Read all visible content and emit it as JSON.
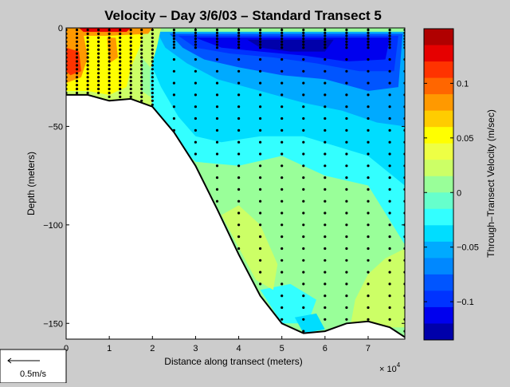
{
  "chart_data": {
    "type": "heatmap",
    "title": "Velocity – Day 3/6/03 – Standard Transect 5",
    "xlabel": "Distance along transect (meters)",
    "x_exponent_label": "× 10",
    "x_exponent_power": "4",
    "ylabel": "Depth (meters)",
    "xlim": [
      0,
      78500
    ],
    "ylim": [
      -158,
      0
    ],
    "x_ticks": [
      0,
      1,
      2,
      3,
      4,
      5,
      6,
      7
    ],
    "x_tick_labels": [
      "0",
      "1",
      "2",
      "3",
      "4",
      "5",
      "6",
      "7"
    ],
    "y_ticks": [
      0,
      -50,
      -100,
      -150
    ],
    "y_tick_labels": [
      "0",
      "−50",
      "−100",
      "−150"
    ],
    "grid": false,
    "colorbar": {
      "label": "Through–Transect Velocity (m/sec)",
      "range": [
        -0.135,
        0.15
      ],
      "ticks": [
        0.1,
        0.05,
        0,
        -0.05,
        -0.1
      ],
      "tick_labels": [
        "0.1",
        "0.05",
        "0",
        "−0.05",
        "−0.1"
      ],
      "levels": [
        {
          "v": 0.14,
          "color": "#b00000"
        },
        {
          "v": 0.125,
          "color": "#e60000"
        },
        {
          "v": 0.11,
          "color": "#ff3300"
        },
        {
          "v": 0.095,
          "color": "#ff6600"
        },
        {
          "v": 0.08,
          "color": "#ff9900"
        },
        {
          "v": 0.065,
          "color": "#ffcc00"
        },
        {
          "v": 0.05,
          "color": "#ffff00"
        },
        {
          "v": 0.035,
          "color": "#eeff44"
        },
        {
          "v": 0.02,
          "color": "#ccff66"
        },
        {
          "v": 0.005,
          "color": "#99ff99"
        },
        {
          "v": -0.01,
          "color": "#66ffcc"
        },
        {
          "v": -0.025,
          "color": "#33ffff"
        },
        {
          "v": -0.04,
          "color": "#00ddff"
        },
        {
          "v": -0.055,
          "color": "#00aaff"
        },
        {
          "v": -0.07,
          "color": "#0088ff"
        },
        {
          "v": -0.085,
          "color": "#0055ff"
        },
        {
          "v": -0.1,
          "color": "#0033ff"
        },
        {
          "v": -0.115,
          "color": "#0000ee"
        },
        {
          "v": -0.13,
          "color": "#0000aa"
        }
      ]
    },
    "bathymetry": {
      "x": [
        0,
        5000,
        10000,
        15000,
        20000,
        25000,
        30000,
        35000,
        40000,
        45000,
        50000,
        55000,
        60000,
        65000,
        70000,
        75000,
        78500
      ],
      "depth": [
        -34,
        -34,
        -37,
        -36,
        -40,
        -53,
        -70,
        -92,
        -115,
        -136,
        -150,
        -155,
        -154,
        -150,
        -149,
        -152,
        -157
      ]
    },
    "regions": [
      {
        "label": "background",
        "value": 0.0,
        "points": [
          [
            0,
            0
          ],
          [
            78500,
            0
          ],
          [
            78500,
            -157
          ],
          [
            0,
            -157
          ]
        ]
      },
      {
        "label": "cyan-upper",
        "value": -0.02,
        "points": [
          [
            14000,
            -5
          ],
          [
            78500,
            -5
          ],
          [
            78500,
            -110
          ],
          [
            70000,
            -80
          ],
          [
            60000,
            -75
          ],
          [
            50000,
            -65
          ],
          [
            40000,
            -70
          ],
          [
            30000,
            -68
          ],
          [
            24000,
            -55
          ],
          [
            20000,
            -40
          ],
          [
            17000,
            -20
          ]
        ]
      },
      {
        "label": "lightblue",
        "value": -0.045,
        "points": [
          [
            18000,
            -2
          ],
          [
            78500,
            -2
          ],
          [
            78500,
            -80
          ],
          [
            70000,
            -65
          ],
          [
            55000,
            -55
          ],
          [
            45000,
            -55
          ],
          [
            36000,
            -58
          ],
          [
            30000,
            -55
          ],
          [
            26000,
            -45
          ],
          [
            22000,
            -30
          ],
          [
            19000,
            -15
          ]
        ]
      },
      {
        "label": "blue1",
        "value": -0.06,
        "points": [
          [
            21000,
            -2
          ],
          [
            78500,
            -2
          ],
          [
            78500,
            -50
          ],
          [
            72000,
            -48
          ],
          [
            64000,
            -42
          ],
          [
            55000,
            -38
          ],
          [
            45000,
            -32
          ],
          [
            35000,
            -26
          ],
          [
            28000,
            -18
          ],
          [
            23000,
            -10
          ]
        ]
      },
      {
        "label": "blue2",
        "value": -0.085,
        "points": [
          [
            24000,
            -3
          ],
          [
            78000,
            -3
          ],
          [
            77000,
            -30
          ],
          [
            70000,
            -32
          ],
          [
            60000,
            -26
          ],
          [
            50000,
            -24
          ],
          [
            40000,
            -20
          ],
          [
            32000,
            -16
          ],
          [
            27000,
            -10
          ]
        ]
      },
      {
        "label": "blue3",
        "value": -0.1,
        "points": [
          [
            26000,
            -4
          ],
          [
            77000,
            -4
          ],
          [
            76000,
            -22
          ],
          [
            68000,
            -22
          ],
          [
            58000,
            -18
          ],
          [
            48000,
            -15
          ],
          [
            38000,
            -13
          ],
          [
            30000,
            -10
          ]
        ]
      },
      {
        "label": "blue4",
        "value": -0.115,
        "points": [
          [
            30000,
            -5
          ],
          [
            75000,
            -5
          ],
          [
            74000,
            -16
          ],
          [
            65000,
            -17
          ],
          [
            55000,
            -14
          ],
          [
            45000,
            -12
          ],
          [
            36000,
            -10
          ]
        ]
      },
      {
        "label": "blue5",
        "value": -0.13,
        "points": [
          [
            42000,
            -6
          ],
          [
            62000,
            -6
          ],
          [
            60000,
            -12
          ],
          [
            52000,
            -12
          ],
          [
            45000,
            -10
          ]
        ]
      },
      {
        "label": "cyan-bottom",
        "value": -0.025,
        "points": [
          [
            45000,
            -133
          ],
          [
            52000,
            -130
          ],
          [
            58000,
            -138
          ],
          [
            56000,
            -150
          ],
          [
            50000,
            -150
          ]
        ]
      },
      {
        "label": "cyan-bottom2",
        "value": -0.035,
        "points": [
          [
            53000,
            -147
          ],
          [
            58000,
            -145
          ],
          [
            60000,
            -153
          ],
          [
            55000,
            -155
          ]
        ]
      },
      {
        "label": "lime-mid",
        "value": 0.02,
        "points": [
          [
            36000,
            -95
          ],
          [
            40000,
            -90
          ],
          [
            45000,
            -100
          ],
          [
            49000,
            -120
          ],
          [
            48000,
            -133
          ],
          [
            44000,
            -128
          ]
        ]
      },
      {
        "label": "lime-right",
        "value": 0.02,
        "points": [
          [
            67000,
            -138
          ],
          [
            70000,
            -125
          ],
          [
            74000,
            -117
          ],
          [
            78500,
            -112
          ],
          [
            78500,
            -152
          ],
          [
            75000,
            -152
          ],
          [
            70000,
            -149
          ],
          [
            66000,
            -150
          ]
        ]
      },
      {
        "label": "coast-lime",
        "value": 0.02,
        "points": [
          [
            0,
            0
          ],
          [
            22000,
            0
          ],
          [
            21000,
            -10
          ],
          [
            19000,
            -25
          ],
          [
            20000,
            -40
          ],
          [
            15000,
            -36
          ],
          [
            10000,
            -37
          ],
          [
            5000,
            -34
          ],
          [
            0,
            -34
          ]
        ]
      },
      {
        "label": "coast-yellow",
        "value": 0.05,
        "points": [
          [
            0,
            0
          ],
          [
            18000,
            0
          ],
          [
            17000,
            -10
          ],
          [
            15000,
            -20
          ],
          [
            14000,
            -30
          ],
          [
            10000,
            -34
          ],
          [
            5000,
            -32
          ],
          [
            0,
            -32
          ]
        ]
      },
      {
        "label": "coast-orange",
        "value": 0.08,
        "points": [
          [
            0,
            -3
          ],
          [
            4000,
            -3
          ],
          [
            5000,
            -15
          ],
          [
            3500,
            -25
          ],
          [
            0,
            -28
          ]
        ]
      },
      {
        "label": "coast-red",
        "value": 0.11,
        "points": [
          [
            0,
            -10
          ],
          [
            3000,
            -12
          ],
          [
            3500,
            -22
          ],
          [
            1000,
            -24
          ],
          [
            0,
            -22
          ]
        ]
      },
      {
        "label": "orange-top",
        "value": 0.08,
        "points": [
          [
            0,
            0
          ],
          [
            20000,
            0
          ],
          [
            19000,
            -3
          ],
          [
            10000,
            -4
          ],
          [
            0,
            -4
          ]
        ]
      },
      {
        "label": "orange-mid",
        "value": 0.08,
        "points": [
          [
            9500,
            -5
          ],
          [
            11500,
            -5
          ],
          [
            12000,
            -15
          ],
          [
            10000,
            -18
          ]
        ]
      },
      {
        "label": "red-surface",
        "value": 0.125,
        "points": [
          [
            3000,
            0
          ],
          [
            15000,
            0
          ],
          [
            14000,
            -2
          ],
          [
            4000,
            -2
          ]
        ]
      },
      {
        "label": "green-col2",
        "value": 0.005,
        "points": [
          [
            17500,
            -15
          ],
          [
            19500,
            -20
          ],
          [
            19500,
            -35
          ],
          [
            17500,
            -32
          ]
        ]
      }
    ],
    "measurement_stations_x": [
      0,
      2500,
      5000,
      7500,
      10000,
      12500,
      15000,
      17500,
      20000,
      25000,
      30000,
      35000,
      40000,
      45000,
      50000,
      55000,
      60000,
      65000,
      70000,
      75000,
      78500
    ],
    "scale_arrow_label": "0.5m/s"
  }
}
